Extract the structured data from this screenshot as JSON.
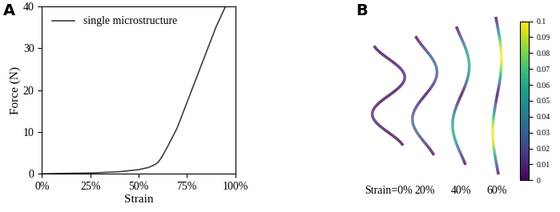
{
  "panel_labels": [
    "A",
    "B"
  ],
  "chart_data": {
    "type": "line",
    "x_label": "Strain",
    "y_label": "Force (N)",
    "xlim": [
      0,
      100
    ],
    "xticks": [
      {
        "value": 0,
        "label": "0%"
      },
      {
        "value": 25,
        "label": "25%"
      },
      {
        "value": 50,
        "label": "50%"
      },
      {
        "value": 75,
        "label": "75%"
      },
      {
        "value": 100,
        "label": "100%"
      }
    ],
    "ylim": [
      0,
      40
    ],
    "yticks": [
      0,
      10,
      20,
      30,
      40
    ],
    "legend": "upper left",
    "series": [
      {
        "name": "single microstructure",
        "color": "#404040",
        "x": [
          0,
          10,
          25,
          40,
          50,
          55,
          58,
          60,
          62,
          65,
          70,
          75,
          80,
          85,
          90,
          95
        ],
        "values": [
          0,
          0.1,
          0.2,
          0.5,
          1.0,
          1.5,
          2.1,
          2.7,
          4.0,
          6.5,
          11,
          17,
          23,
          29,
          35,
          40
        ]
      }
    ]
  },
  "diagram": {
    "labels": [
      "Strain=0%",
      "20%",
      "40%",
      "60%"
    ],
    "peak_values": [
      0.005,
      0.03,
      0.06,
      0.1
    ],
    "colorbar": {
      "lim": [
        0,
        0.1
      ],
      "ticks": [
        0,
        0.01,
        0.02,
        0.03,
        0.04,
        0.05,
        0.06,
        0.07,
        0.08,
        0.09,
        0.1
      ]
    }
  }
}
